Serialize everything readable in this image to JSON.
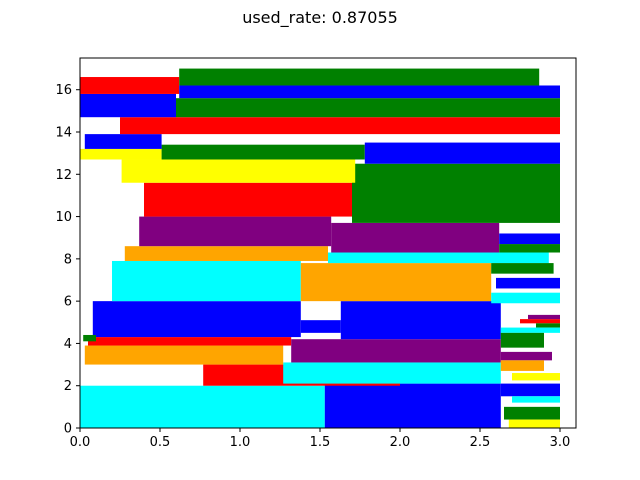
{
  "chart_data": {
    "type": "bar",
    "title": "used_rate: 0.87055",
    "xlabel": "",
    "ylabel": "",
    "xlim": [
      0,
      3.1
    ],
    "ylim": [
      0,
      17.5
    ],
    "xticks": [
      "0.0",
      "0.5",
      "1.0",
      "1.5",
      "2.0",
      "2.5",
      "3.0"
    ],
    "yticks": [
      "0",
      "2",
      "4",
      "6",
      "8",
      "10",
      "12",
      "14",
      "16"
    ],
    "grid": false,
    "rectangles": [
      {
        "x0": 0.0,
        "x1": 1.53,
        "y0": 0.0,
        "y1": 2.0,
        "color": "cyan"
      },
      {
        "x0": 1.53,
        "x1": 2.63,
        "y0": 0.0,
        "y1": 2.1,
        "color": "blue"
      },
      {
        "x0": 0.77,
        "x1": 2.0,
        "y0": 2.0,
        "y1": 3.0,
        "color": "red"
      },
      {
        "x0": 1.27,
        "x1": 2.63,
        "y0": 2.1,
        "y1": 3.1,
        "color": "cyan"
      },
      {
        "x0": 0.03,
        "x1": 1.27,
        "y0": 3.0,
        "y1": 3.9,
        "color": "orange"
      },
      {
        "x0": 0.05,
        "x1": 1.32,
        "y0": 3.9,
        "y1": 4.3,
        "color": "red"
      },
      {
        "x0": 1.32,
        "x1": 2.63,
        "y0": 3.1,
        "y1": 4.2,
        "color": "purple"
      },
      {
        "x0": 0.08,
        "x1": 1.38,
        "y0": 4.3,
        "y1": 6.0,
        "color": "blue"
      },
      {
        "x0": 1.38,
        "x1": 1.63,
        "y0": 4.5,
        "y1": 5.1,
        "color": "blue"
      },
      {
        "x0": 1.63,
        "x1": 2.63,
        "y0": 4.2,
        "y1": 6.0,
        "color": "blue"
      },
      {
        "x0": 0.02,
        "x1": 0.1,
        "y0": 4.1,
        "y1": 4.4,
        "color": "green"
      },
      {
        "x0": 0.2,
        "x1": 1.38,
        "y0": 6.0,
        "y1": 7.9,
        "color": "cyan"
      },
      {
        "x0": 1.38,
        "x1": 2.57,
        "y0": 6.0,
        "y1": 7.8,
        "color": "orange"
      },
      {
        "x0": 0.28,
        "x1": 1.55,
        "y0": 7.9,
        "y1": 8.6,
        "color": "orange"
      },
      {
        "x0": 1.55,
        "x1": 2.93,
        "y0": 7.8,
        "y1": 8.3,
        "color": "cyan"
      },
      {
        "x0": 0.37,
        "x1": 1.57,
        "y0": 8.6,
        "y1": 10.0,
        "color": "purple"
      },
      {
        "x0": 1.57,
        "x1": 2.62,
        "y0": 8.3,
        "y1": 9.7,
        "color": "purple"
      },
      {
        "x0": 0.4,
        "x1": 1.7,
        "y0": 10.0,
        "y1": 11.6,
        "color": "red"
      },
      {
        "x0": 1.7,
        "x1": 3.0,
        "y0": 9.7,
        "y1": 12.5,
        "color": "green"
      },
      {
        "x0": 0.26,
        "x1": 1.72,
        "y0": 11.6,
        "y1": 12.7,
        "color": "yellow"
      },
      {
        "x0": 0.0,
        "x1": 0.51,
        "y0": 12.7,
        "y1": 13.2,
        "color": "yellow"
      },
      {
        "x0": 0.51,
        "x1": 1.78,
        "y0": 12.7,
        "y1": 13.4,
        "color": "green"
      },
      {
        "x0": 1.78,
        "x1": 3.0,
        "y0": 12.5,
        "y1": 13.5,
        "color": "blue"
      },
      {
        "x0": 0.03,
        "x1": 0.51,
        "y0": 13.2,
        "y1": 13.9,
        "color": "blue"
      },
      {
        "x0": 0.25,
        "x1": 3.0,
        "y0": 13.9,
        "y1": 14.7,
        "color": "red"
      },
      {
        "x0": 0.0,
        "x1": 0.6,
        "y0": 14.7,
        "y1": 15.8,
        "color": "blue"
      },
      {
        "x0": 0.6,
        "x1": 3.0,
        "y0": 14.7,
        "y1": 15.6,
        "color": "green"
      },
      {
        "x0": 0.0,
        "x1": 0.62,
        "y0": 15.8,
        "y1": 16.6,
        "color": "red"
      },
      {
        "x0": 0.62,
        "x1": 3.0,
        "y0": 15.6,
        "y1": 16.2,
        "color": "blue"
      },
      {
        "x0": 0.62,
        "x1": 2.87,
        "y0": 16.2,
        "y1": 17.0,
        "color": "green"
      },
      {
        "x0": 2.57,
        "x1": 2.96,
        "y0": 7.3,
        "y1": 7.8,
        "color": "green"
      },
      {
        "x0": 2.62,
        "x1": 3.0,
        "y0": 8.3,
        "y1": 8.7,
        "color": "green"
      },
      {
        "x0": 2.62,
        "x1": 3.0,
        "y0": 8.7,
        "y1": 9.2,
        "color": "blue"
      },
      {
        "x0": 2.6,
        "x1": 3.0,
        "y0": 6.6,
        "y1": 7.1,
        "color": "blue"
      },
      {
        "x0": 2.57,
        "x1": 3.0,
        "y0": 5.9,
        "y1": 6.4,
        "color": "cyan"
      },
      {
        "x0": 2.75,
        "x1": 3.0,
        "y0": 4.95,
        "y1": 5.15,
        "color": "red"
      },
      {
        "x0": 2.8,
        "x1": 3.0,
        "y0": 5.15,
        "y1": 5.35,
        "color": "purple"
      },
      {
        "x0": 2.85,
        "x1": 3.0,
        "y0": 4.75,
        "y1": 4.95,
        "color": "green"
      },
      {
        "x0": 2.63,
        "x1": 3.0,
        "y0": 4.5,
        "y1": 4.75,
        "color": "cyan"
      },
      {
        "x0": 2.63,
        "x1": 2.9,
        "y0": 3.8,
        "y1": 4.5,
        "color": "green"
      },
      {
        "x0": 2.63,
        "x1": 2.95,
        "y0": 3.2,
        "y1": 3.6,
        "color": "purple"
      },
      {
        "x0": 2.63,
        "x1": 2.9,
        "y0": 2.7,
        "y1": 3.2,
        "color": "orange"
      },
      {
        "x0": 2.7,
        "x1": 3.0,
        "y0": 2.25,
        "y1": 2.6,
        "color": "yellow"
      },
      {
        "x0": 2.63,
        "x1": 3.0,
        "y0": 1.5,
        "y1": 2.1,
        "color": "blue"
      },
      {
        "x0": 2.7,
        "x1": 3.0,
        "y0": 1.2,
        "y1": 1.5,
        "color": "cyan"
      },
      {
        "x0": 2.65,
        "x1": 3.0,
        "y0": 0.4,
        "y1": 1.0,
        "color": "green"
      },
      {
        "x0": 2.68,
        "x1": 3.0,
        "y0": 0.0,
        "y1": 0.4,
        "color": "yellow"
      }
    ]
  }
}
